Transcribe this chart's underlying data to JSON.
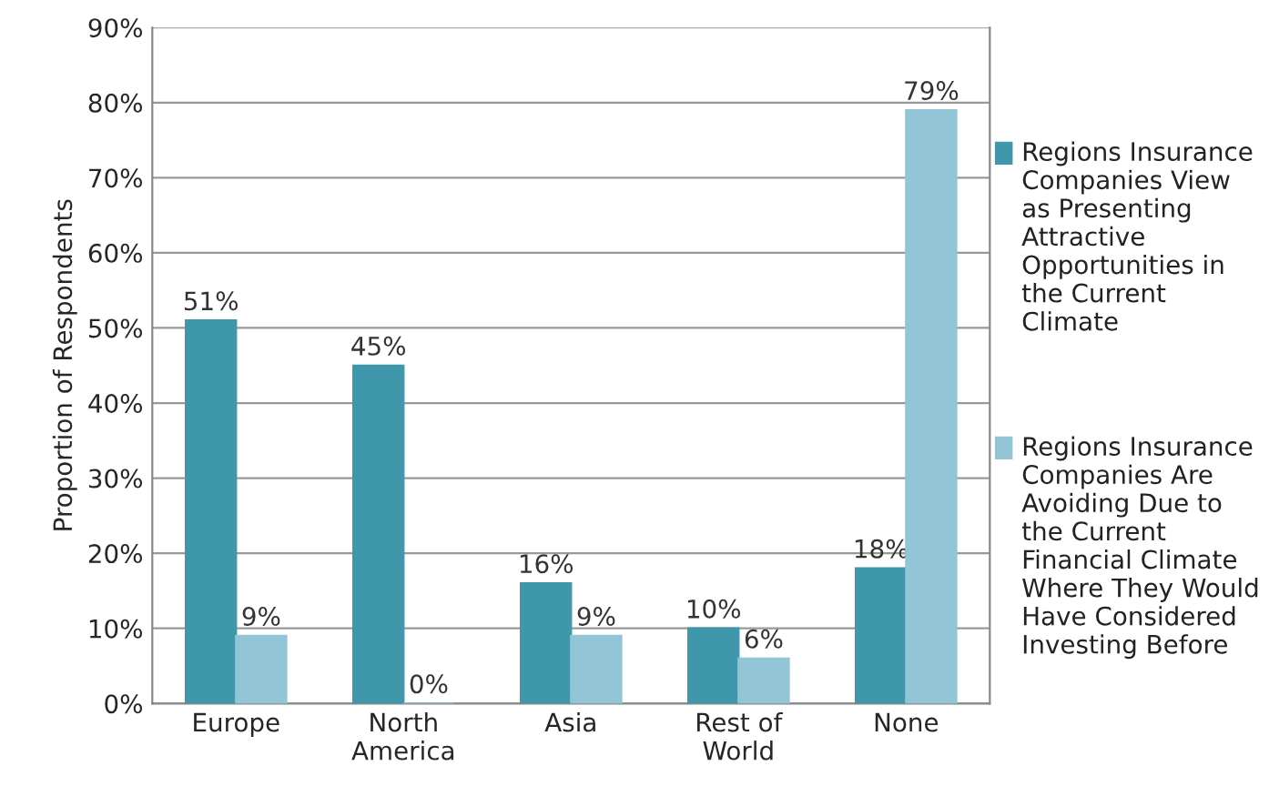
{
  "chart_data": {
    "type": "bar",
    "ylabel": "Proportion of Respondents",
    "categories": [
      "Europe",
      "North\nAmerica",
      "Asia",
      "Rest of\nWorld",
      "None"
    ],
    "series": [
      {
        "name": "Regions Insurance Companies View as Presenting Attractive Opportunities in the Current Climate",
        "color": "#3f97ab",
        "values": [
          51,
          45,
          16,
          10,
          18
        ],
        "value_labels": [
          "51%",
          "45%",
          "16%",
          "10%",
          "18%"
        ]
      },
      {
        "name": "Regions Insurance Companies Are Avoiding Due to the Current Financial Climate Where They Would Have Considered Investing Before",
        "color": "#92c5d6",
        "values": [
          9,
          0,
          9,
          6,
          79
        ],
        "value_labels": [
          "9%",
          "0%",
          "9%",
          "6%",
          "79%"
        ]
      }
    ],
    "ylim": [
      0,
      90
    ],
    "yticks": [
      {
        "value": 0,
        "label": "0%"
      },
      {
        "value": 10,
        "label": "10%"
      },
      {
        "value": 20,
        "label": "20%"
      },
      {
        "value": 30,
        "label": "30%"
      },
      {
        "value": 40,
        "label": "40%"
      },
      {
        "value": 50,
        "label": "50%"
      },
      {
        "value": 60,
        "label": "60%"
      },
      {
        "value": 70,
        "label": "70%"
      },
      {
        "value": 80,
        "label": "80%"
      },
      {
        "value": 90,
        "label": "90%"
      }
    ],
    "grid": "y",
    "legend": "right"
  }
}
